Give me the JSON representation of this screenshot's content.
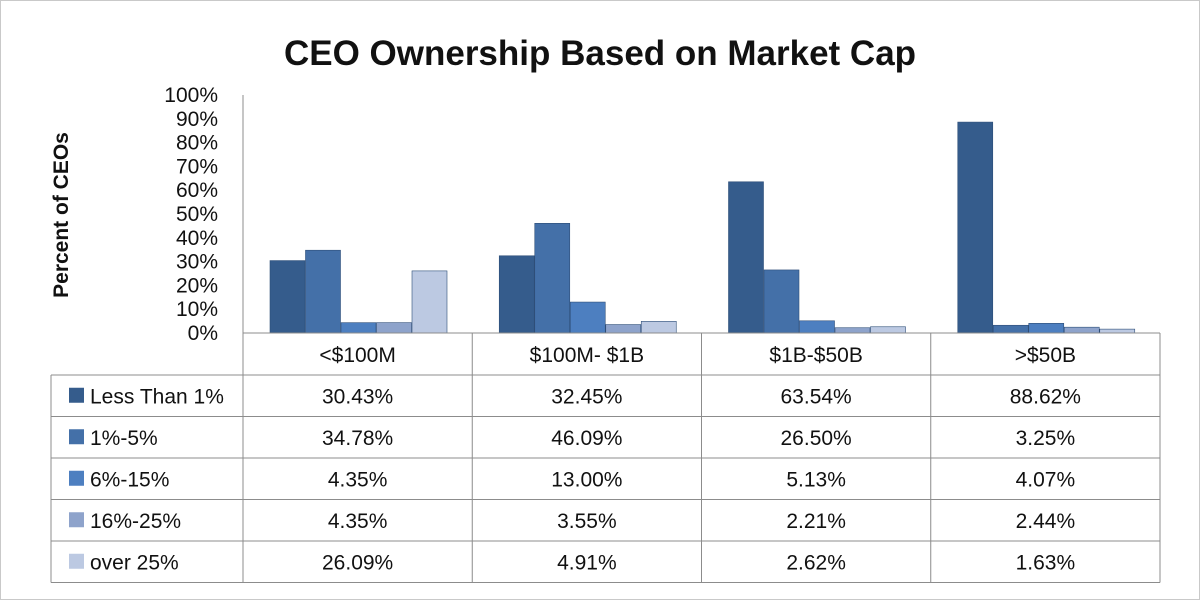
{
  "chart_data": {
    "type": "bar",
    "title": "CEO Ownership Based on Market Cap",
    "ylabel": "Percent of CEOs",
    "xlabel": "",
    "ylim": [
      0,
      100
    ],
    "y_ticks": [
      "0%",
      "10%",
      "20%",
      "30%",
      "40%",
      "50%",
      "60%",
      "70%",
      "80%",
      "90%",
      "100%"
    ],
    "categories": [
      "<$100M",
      "$100M- $1B",
      "$1B-$50B",
      ">$50B"
    ],
    "series": [
      {
        "name": "Less Than 1%",
        "color": "#355C8C",
        "values": [
          30.43,
          32.45,
          63.54,
          88.62
        ],
        "labels": [
          "30.43%",
          "32.45%",
          "63.54%",
          "88.62%"
        ]
      },
      {
        "name": "1%-5%",
        "color": "#4470A8",
        "values": [
          34.78,
          46.09,
          26.5,
          3.25
        ],
        "labels": [
          "34.78%",
          "46.09%",
          "26.50%",
          "3.25%"
        ]
      },
      {
        "name": "6%-15%",
        "color": "#4D7FC0",
        "values": [
          4.35,
          13.0,
          5.13,
          4.07
        ],
        "labels": [
          "4.35%",
          "13.00%",
          "5.13%",
          "4.07%"
        ]
      },
      {
        "name": "16%-25%",
        "color": "#8EA3CB",
        "values": [
          4.35,
          3.55,
          2.21,
          2.44
        ],
        "labels": [
          "4.35%",
          "3.55%",
          "2.21%",
          "2.44%"
        ]
      },
      {
        "name": "over 25%",
        "color": "#BCC9E2",
        "values": [
          26.09,
          4.91,
          2.62,
          1.63
        ],
        "labels": [
          "26.09%",
          "4.91%",
          "2.62%",
          "1.63%"
        ]
      }
    ],
    "grid": false,
    "legend": "data-table"
  }
}
